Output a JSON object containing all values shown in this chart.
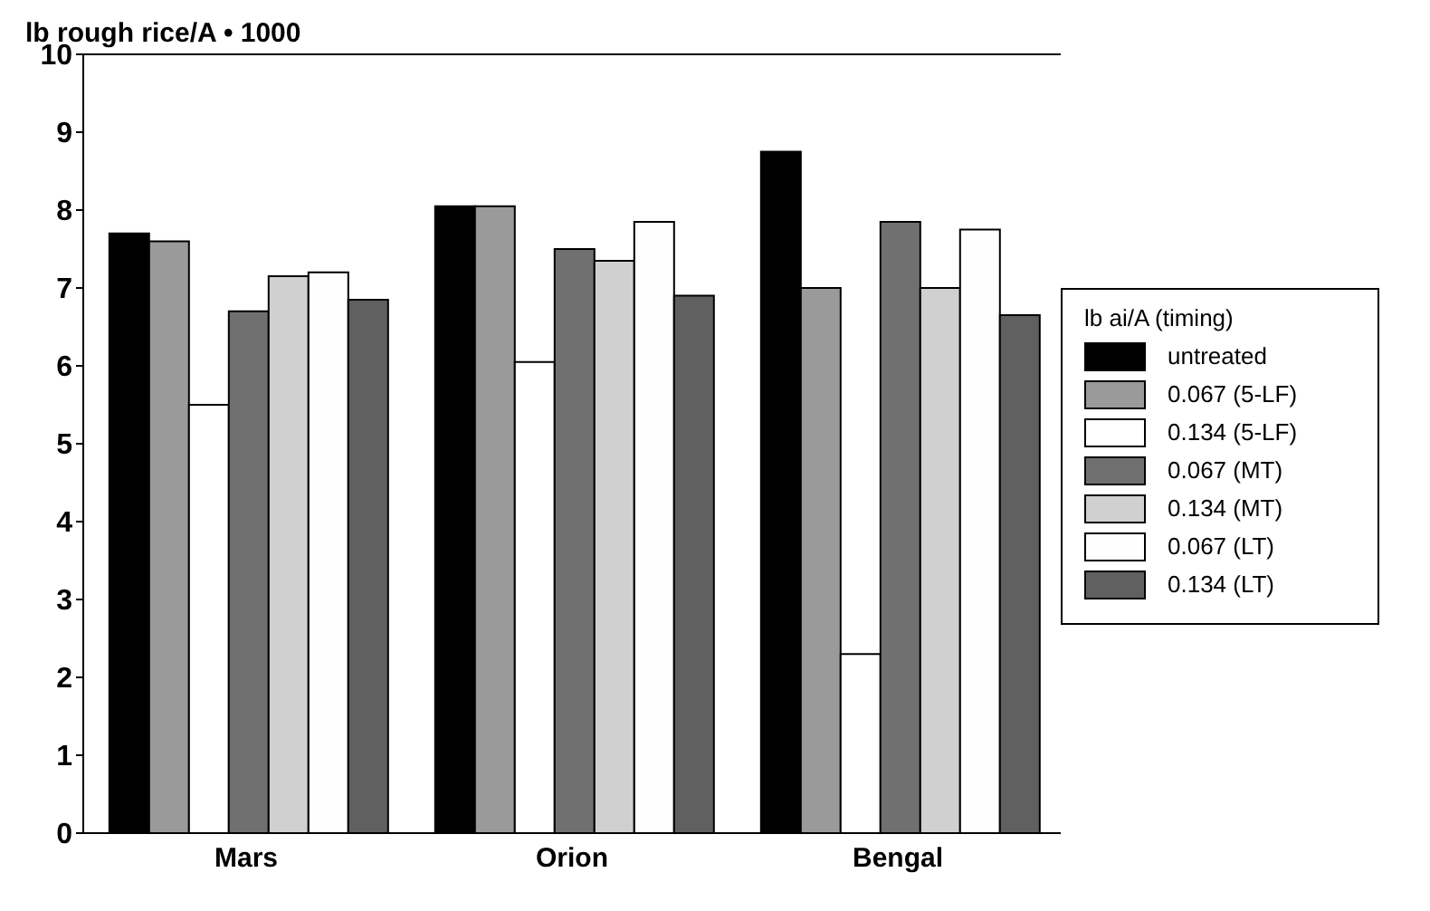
{
  "chart_data": {
    "type": "bar",
    "ylabel": "lb rough rice/A • 1000",
    "legend_title": "lb ai/A (timing)",
    "categories": [
      "Mars",
      "Orion",
      "Bengal"
    ],
    "series": [
      {
        "name": "untreated",
        "color": "#000000",
        "values": [
          7.7,
          8.05,
          8.75
        ]
      },
      {
        "name": "0.067 (5-LF)",
        "color": "#9a9a9a",
        "values": [
          7.6,
          8.05,
          7.0
        ]
      },
      {
        "name": "0.134 (5-LF)",
        "color": "#ffffff",
        "values": [
          5.5,
          6.05,
          2.3
        ]
      },
      {
        "name": "0.067 (MT)",
        "color": "#707070",
        "values": [
          6.7,
          7.5,
          7.85
        ]
      },
      {
        "name": "0.134 (MT)",
        "color": "#d0d0d0",
        "values": [
          7.15,
          7.35,
          7.0
        ]
      },
      {
        "name": "0.067 (LT)",
        "color": "#fefefe",
        "values": [
          7.2,
          7.85,
          7.75
        ]
      },
      {
        "name": "0.134 (LT)",
        "color": "#606060",
        "values": [
          6.85,
          6.9,
          6.65
        ]
      }
    ],
    "ylim": [
      0,
      10
    ],
    "yticks": [
      0,
      1,
      2,
      3,
      4,
      5,
      6,
      7,
      8,
      9,
      10
    ],
    "grid": false,
    "legend": "right"
  }
}
